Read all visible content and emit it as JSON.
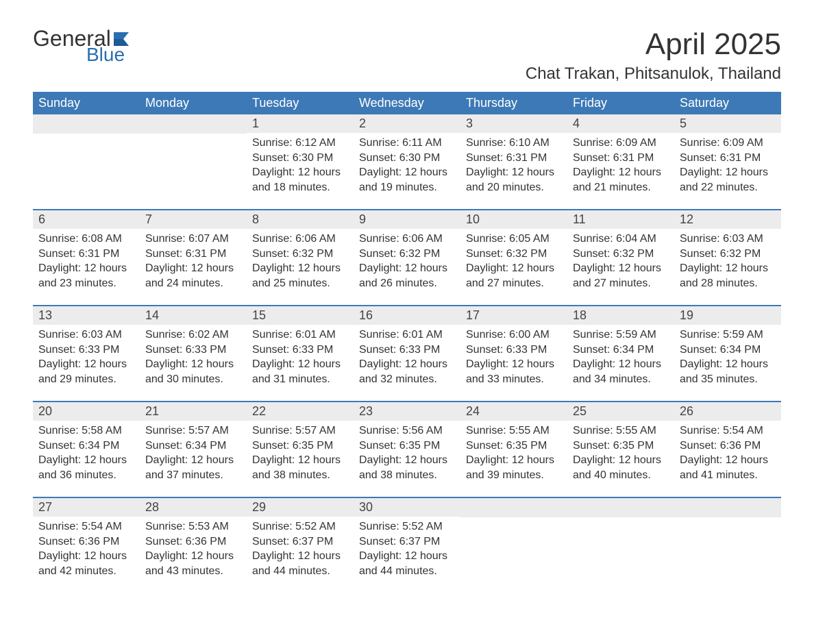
{
  "brand": {
    "general": "General",
    "blue": "Blue",
    "flag_color": "#2a6fb0"
  },
  "title": "April 2025",
  "location": "Chat Trakan, Phitsanulok, Thailand",
  "header_bg": "#3d79b6",
  "header_text_color": "#ffffff",
  "daynum_bg": "#ececec",
  "border_color": "#3d79b6",
  "text_color": "#333333",
  "font_family": "Arial, Helvetica, sans-serif",
  "title_fontsize": 44,
  "location_fontsize": 24,
  "weekday_fontsize": 18,
  "body_fontsize": 16,
  "weekdays": [
    "Sunday",
    "Monday",
    "Tuesday",
    "Wednesday",
    "Thursday",
    "Friday",
    "Saturday"
  ],
  "first_weekday_index": 2,
  "days_in_month": 30,
  "days": {
    "1": {
      "sunrise": "6:12 AM",
      "sunset": "6:30 PM",
      "daylight": "12 hours and 18 minutes."
    },
    "2": {
      "sunrise": "6:11 AM",
      "sunset": "6:30 PM",
      "daylight": "12 hours and 19 minutes."
    },
    "3": {
      "sunrise": "6:10 AM",
      "sunset": "6:31 PM",
      "daylight": "12 hours and 20 minutes."
    },
    "4": {
      "sunrise": "6:09 AM",
      "sunset": "6:31 PM",
      "daylight": "12 hours and 21 minutes."
    },
    "5": {
      "sunrise": "6:09 AM",
      "sunset": "6:31 PM",
      "daylight": "12 hours and 22 minutes."
    },
    "6": {
      "sunrise": "6:08 AM",
      "sunset": "6:31 PM",
      "daylight": "12 hours and 23 minutes."
    },
    "7": {
      "sunrise": "6:07 AM",
      "sunset": "6:31 PM",
      "daylight": "12 hours and 24 minutes."
    },
    "8": {
      "sunrise": "6:06 AM",
      "sunset": "6:32 PM",
      "daylight": "12 hours and 25 minutes."
    },
    "9": {
      "sunrise": "6:06 AM",
      "sunset": "6:32 PM",
      "daylight": "12 hours and 26 minutes."
    },
    "10": {
      "sunrise": "6:05 AM",
      "sunset": "6:32 PM",
      "daylight": "12 hours and 27 minutes."
    },
    "11": {
      "sunrise": "6:04 AM",
      "sunset": "6:32 PM",
      "daylight": "12 hours and 27 minutes."
    },
    "12": {
      "sunrise": "6:03 AM",
      "sunset": "6:32 PM",
      "daylight": "12 hours and 28 minutes."
    },
    "13": {
      "sunrise": "6:03 AM",
      "sunset": "6:33 PM",
      "daylight": "12 hours and 29 minutes."
    },
    "14": {
      "sunrise": "6:02 AM",
      "sunset": "6:33 PM",
      "daylight": "12 hours and 30 minutes."
    },
    "15": {
      "sunrise": "6:01 AM",
      "sunset": "6:33 PM",
      "daylight": "12 hours and 31 minutes."
    },
    "16": {
      "sunrise": "6:01 AM",
      "sunset": "6:33 PM",
      "daylight": "12 hours and 32 minutes."
    },
    "17": {
      "sunrise": "6:00 AM",
      "sunset": "6:33 PM",
      "daylight": "12 hours and 33 minutes."
    },
    "18": {
      "sunrise": "5:59 AM",
      "sunset": "6:34 PM",
      "daylight": "12 hours and 34 minutes."
    },
    "19": {
      "sunrise": "5:59 AM",
      "sunset": "6:34 PM",
      "daylight": "12 hours and 35 minutes."
    },
    "20": {
      "sunrise": "5:58 AM",
      "sunset": "6:34 PM",
      "daylight": "12 hours and 36 minutes."
    },
    "21": {
      "sunrise": "5:57 AM",
      "sunset": "6:34 PM",
      "daylight": "12 hours and 37 minutes."
    },
    "22": {
      "sunrise": "5:57 AM",
      "sunset": "6:35 PM",
      "daylight": "12 hours and 38 minutes."
    },
    "23": {
      "sunrise": "5:56 AM",
      "sunset": "6:35 PM",
      "daylight": "12 hours and 38 minutes."
    },
    "24": {
      "sunrise": "5:55 AM",
      "sunset": "6:35 PM",
      "daylight": "12 hours and 39 minutes."
    },
    "25": {
      "sunrise": "5:55 AM",
      "sunset": "6:35 PM",
      "daylight": "12 hours and 40 minutes."
    },
    "26": {
      "sunrise": "5:54 AM",
      "sunset": "6:36 PM",
      "daylight": "12 hours and 41 minutes."
    },
    "27": {
      "sunrise": "5:54 AM",
      "sunset": "6:36 PM",
      "daylight": "12 hours and 42 minutes."
    },
    "28": {
      "sunrise": "5:53 AM",
      "sunset": "6:36 PM",
      "daylight": "12 hours and 43 minutes."
    },
    "29": {
      "sunrise": "5:52 AM",
      "sunset": "6:37 PM",
      "daylight": "12 hours and 44 minutes."
    },
    "30": {
      "sunrise": "5:52 AM",
      "sunset": "6:37 PM",
      "daylight": "12 hours and 44 minutes."
    }
  },
  "labels": {
    "sunrise_prefix": "Sunrise: ",
    "sunset_prefix": "Sunset: ",
    "daylight_prefix": "Daylight: "
  }
}
